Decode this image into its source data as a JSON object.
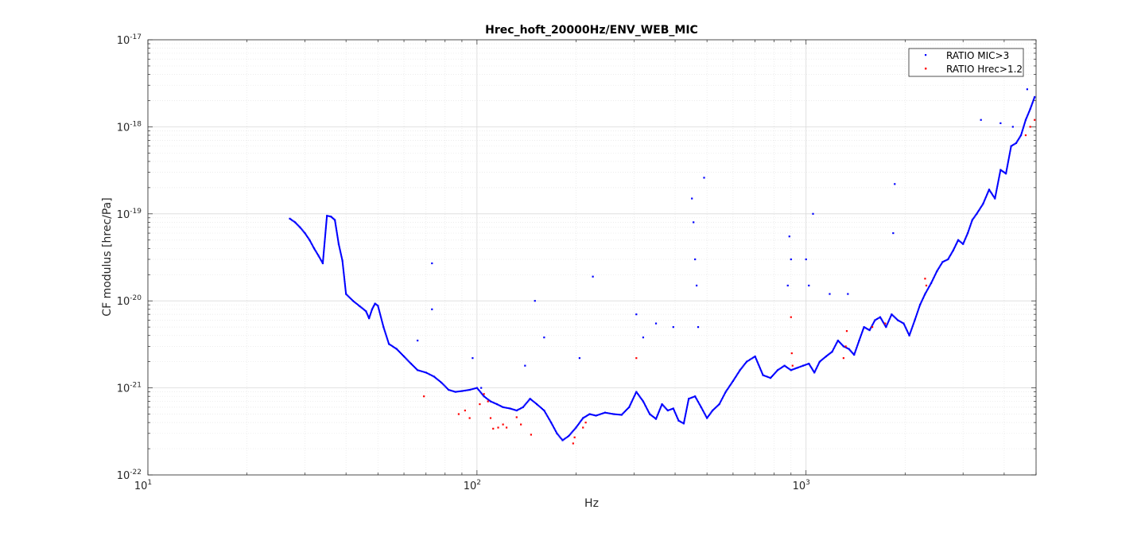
{
  "chart_data": {
    "type": "scatter",
    "title": "Hrec_hoft_20000Hz/ENV_WEB_MIC",
    "xlabel": "Hz",
    "ylabel": "CF modulus [hrec/Pa]",
    "xscale": "log",
    "yscale": "log",
    "xlim": [
      10,
      5000
    ],
    "ylim": [
      1e-22,
      1e-17
    ],
    "grid": true,
    "legend_position": "top-right",
    "x_ticks": [
      {
        "base": "10",
        "exp": "1",
        "value": 10
      },
      {
        "base": "10",
        "exp": "2",
        "value": 100
      },
      {
        "base": "10",
        "exp": "3",
        "value": 1000
      }
    ],
    "y_ticks": [
      {
        "base": "10",
        "exp": "-22",
        "value": 1e-22
      },
      {
        "base": "10",
        "exp": "-21",
        "value": 1e-21
      },
      {
        "base": "10",
        "exp": "-20",
        "value": 1e-20
      },
      {
        "base": "10",
        "exp": "-19",
        "value": 1e-19
      },
      {
        "base": "10",
        "exp": "-18",
        "value": 1e-18
      },
      {
        "base": "10",
        "exp": "-17",
        "value": 1e-17
      }
    ],
    "series": [
      {
        "name": "RATIO MIC>3",
        "color": "#0000ff",
        "marker": "dot",
        "points": [
          [
            27,
            8.8e-20
          ],
          [
            28,
            8e-20
          ],
          [
            29,
            7e-20
          ],
          [
            30,
            6e-20
          ],
          [
            31,
            5e-20
          ],
          [
            32,
            4e-20
          ],
          [
            33,
            3.3e-20
          ],
          [
            34,
            2.7e-20
          ],
          [
            35,
            9.5e-20
          ],
          [
            36,
            9.3e-20
          ],
          [
            37,
            8.5e-20
          ],
          [
            38,
            4.5e-20
          ],
          [
            39,
            2.9e-20
          ],
          [
            40,
            1.2e-20
          ],
          [
            42,
            1e-20
          ],
          [
            44,
            8.7e-21
          ],
          [
            46,
            7.6e-21
          ],
          [
            47,
            6.3e-21
          ],
          [
            48,
            8e-21
          ],
          [
            49,
            9.3e-21
          ],
          [
            50,
            8.8e-21
          ],
          [
            52,
            5e-21
          ],
          [
            54,
            3.2e-21
          ],
          [
            57,
            2.8e-21
          ],
          [
            60,
            2.3e-21
          ],
          [
            63,
            1.9e-21
          ],
          [
            66,
            1.6e-21
          ],
          [
            70,
            1.5e-21
          ],
          [
            74,
            1.35e-21
          ],
          [
            78,
            1.15e-21
          ],
          [
            82,
            9.5e-22
          ],
          [
            86,
            9e-22
          ],
          [
            90,
            9.2e-22
          ],
          [
            95,
            9.5e-22
          ],
          [
            100,
            1e-21
          ],
          [
            105,
            8e-22
          ],
          [
            110,
            7e-22
          ],
          [
            115,
            6.5e-22
          ],
          [
            120,
            6e-22
          ],
          [
            126,
            5.8e-22
          ],
          [
            132,
            5.5e-22
          ],
          [
            138,
            6e-22
          ],
          [
            145,
            7.5e-22
          ],
          [
            152,
            6.5e-22
          ],
          [
            160,
            5.5e-22
          ],
          [
            168,
            4e-22
          ],
          [
            175,
            3e-22
          ],
          [
            182,
            2.5e-22
          ],
          [
            190,
            2.8e-22
          ],
          [
            200,
            3.5e-22
          ],
          [
            210,
            4.5e-22
          ],
          [
            220,
            5e-22
          ],
          [
            230,
            4.8e-22
          ],
          [
            245,
            5.2e-22
          ],
          [
            260,
            5e-22
          ],
          [
            275,
            4.9e-22
          ],
          [
            290,
            6e-22
          ],
          [
            305,
            9e-22
          ],
          [
            320,
            7e-22
          ],
          [
            335,
            5e-22
          ],
          [
            350,
            4.4e-22
          ],
          [
            365,
            6.5e-22
          ],
          [
            380,
            5.5e-22
          ],
          [
            395,
            5.8e-22
          ],
          [
            410,
            4.2e-22
          ],
          [
            425,
            3.9e-22
          ],
          [
            440,
            7.5e-22
          ],
          [
            460,
            8e-22
          ],
          [
            480,
            6e-22
          ],
          [
            500,
            4.5e-22
          ],
          [
            520,
            5.5e-22
          ],
          [
            545,
            6.5e-22
          ],
          [
            570,
            9e-22
          ],
          [
            600,
            1.2e-21
          ],
          [
            630,
            1.6e-21
          ],
          [
            660,
            2e-21
          ],
          [
            700,
            2.3e-21
          ],
          [
            740,
            1.4e-21
          ],
          [
            780,
            1.3e-21
          ],
          [
            820,
            1.6e-21
          ],
          [
            860,
            1.8e-21
          ],
          [
            900,
            1.6e-21
          ],
          [
            940,
            1.7e-21
          ],
          [
            980,
            1.8e-21
          ],
          [
            1020,
            1.9e-21
          ],
          [
            1060,
            1.5e-21
          ],
          [
            1100,
            2e-21
          ],
          [
            1150,
            2.3e-21
          ],
          [
            1200,
            2.6e-21
          ],
          [
            1250,
            3.5e-21
          ],
          [
            1300,
            3e-21
          ],
          [
            1350,
            2.8e-21
          ],
          [
            1400,
            2.4e-21
          ],
          [
            1450,
            3.5e-21
          ],
          [
            1500,
            5e-21
          ],
          [
            1560,
            4.6e-21
          ],
          [
            1620,
            6e-21
          ],
          [
            1680,
            6.5e-21
          ],
          [
            1750,
            5e-21
          ],
          [
            1820,
            7e-21
          ],
          [
            1900,
            6e-21
          ],
          [
            1980,
            5.5e-21
          ],
          [
            2060,
            4e-21
          ],
          [
            2140,
            6e-21
          ],
          [
            2220,
            9e-21
          ],
          [
            2300,
            1.2e-20
          ],
          [
            2400,
            1.6e-20
          ],
          [
            2500,
            2.2e-20
          ],
          [
            2600,
            2.8e-20
          ],
          [
            2700,
            3e-20
          ],
          [
            2800,
            3.8e-20
          ],
          [
            2900,
            5e-20
          ],
          [
            3000,
            4.5e-20
          ],
          [
            3100,
            6e-20
          ],
          [
            3200,
            8.5e-20
          ],
          [
            3300,
            1e-19
          ],
          [
            3450,
            1.3e-19
          ],
          [
            3600,
            1.9e-19
          ],
          [
            3750,
            1.5e-19
          ],
          [
            3900,
            3.2e-19
          ],
          [
            4050,
            2.9e-19
          ],
          [
            4200,
            6e-19
          ],
          [
            4350,
            6.5e-19
          ],
          [
            4500,
            8e-19
          ],
          [
            4650,
            1.2e-18
          ],
          [
            4800,
            1.6e-18
          ],
          [
            4950,
            2.2e-18
          ],
          [
            225,
            1.9e-20
          ],
          [
            205,
            2.2e-21
          ],
          [
            490,
            2.6e-19
          ],
          [
            450,
            1.5e-19
          ],
          [
            455,
            8e-20
          ],
          [
            460,
            3e-20
          ],
          [
            465,
            1.5e-20
          ],
          [
            470,
            5e-21
          ],
          [
            305,
            7e-21
          ],
          [
            320,
            3.8e-21
          ],
          [
            350,
            5.5e-21
          ],
          [
            395,
            5e-21
          ],
          [
            150,
            1e-20
          ],
          [
            160,
            3.8e-21
          ],
          [
            140,
            1.8e-21
          ],
          [
            73,
            2.7e-20
          ],
          [
            73,
            8e-21
          ],
          [
            66,
            3.5e-21
          ],
          [
            97,
            2.2e-21
          ],
          [
            103,
            1e-21
          ],
          [
            890,
            5.5e-20
          ],
          [
            900,
            3e-20
          ],
          [
            880,
            1.5e-20
          ],
          [
            1000,
            3e-20
          ],
          [
            1050,
            1e-19
          ],
          [
            1020,
            1.5e-20
          ],
          [
            1180,
            1.2e-20
          ],
          [
            1340,
            1.2e-20
          ],
          [
            1860,
            2.2e-19
          ],
          [
            1840,
            6e-20
          ],
          [
            3400,
            1.2e-18
          ],
          [
            3900,
            1.1e-18
          ],
          [
            4250,
            1e-18
          ],
          [
            4700,
            2.7e-18
          ]
        ]
      },
      {
        "name": "RATIO Hrec>1.2",
        "color": "#ff0000",
        "marker": "dot",
        "points": [
          [
            69,
            8e-22
          ],
          [
            88,
            5e-22
          ],
          [
            92,
            5.5e-22
          ],
          [
            95,
            4.5e-22
          ],
          [
            102,
            6.5e-22
          ],
          [
            105,
            8.5e-22
          ],
          [
            108,
            7e-22
          ],
          [
            110,
            4.5e-22
          ],
          [
            112,
            3.4e-22
          ],
          [
            116,
            3.5e-22
          ],
          [
            120,
            3.8e-22
          ],
          [
            123,
            3.5e-22
          ],
          [
            132,
            4.6e-22
          ],
          [
            136,
            3.8e-22
          ],
          [
            146,
            2.9e-22
          ],
          [
            196,
            2.3e-22
          ],
          [
            198,
            2.7e-22
          ],
          [
            210,
            3.5e-22
          ],
          [
            214,
            4e-22
          ],
          [
            305,
            2.2e-21
          ],
          [
            900,
            6.5e-21
          ],
          [
            905,
            2.5e-21
          ],
          [
            910,
            1.8e-21
          ],
          [
            1300,
            2.2e-21
          ],
          [
            1320,
            3e-21
          ],
          [
            1330,
            4.5e-21
          ],
          [
            1590,
            5e-21
          ],
          [
            1740,
            5.5e-21
          ],
          [
            2300,
            1.8e-20
          ],
          [
            2320,
            1.5e-20
          ],
          [
            4650,
            8e-19
          ],
          [
            4800,
            1e-18
          ],
          [
            4950,
            1.2e-18
          ]
        ]
      }
    ]
  }
}
